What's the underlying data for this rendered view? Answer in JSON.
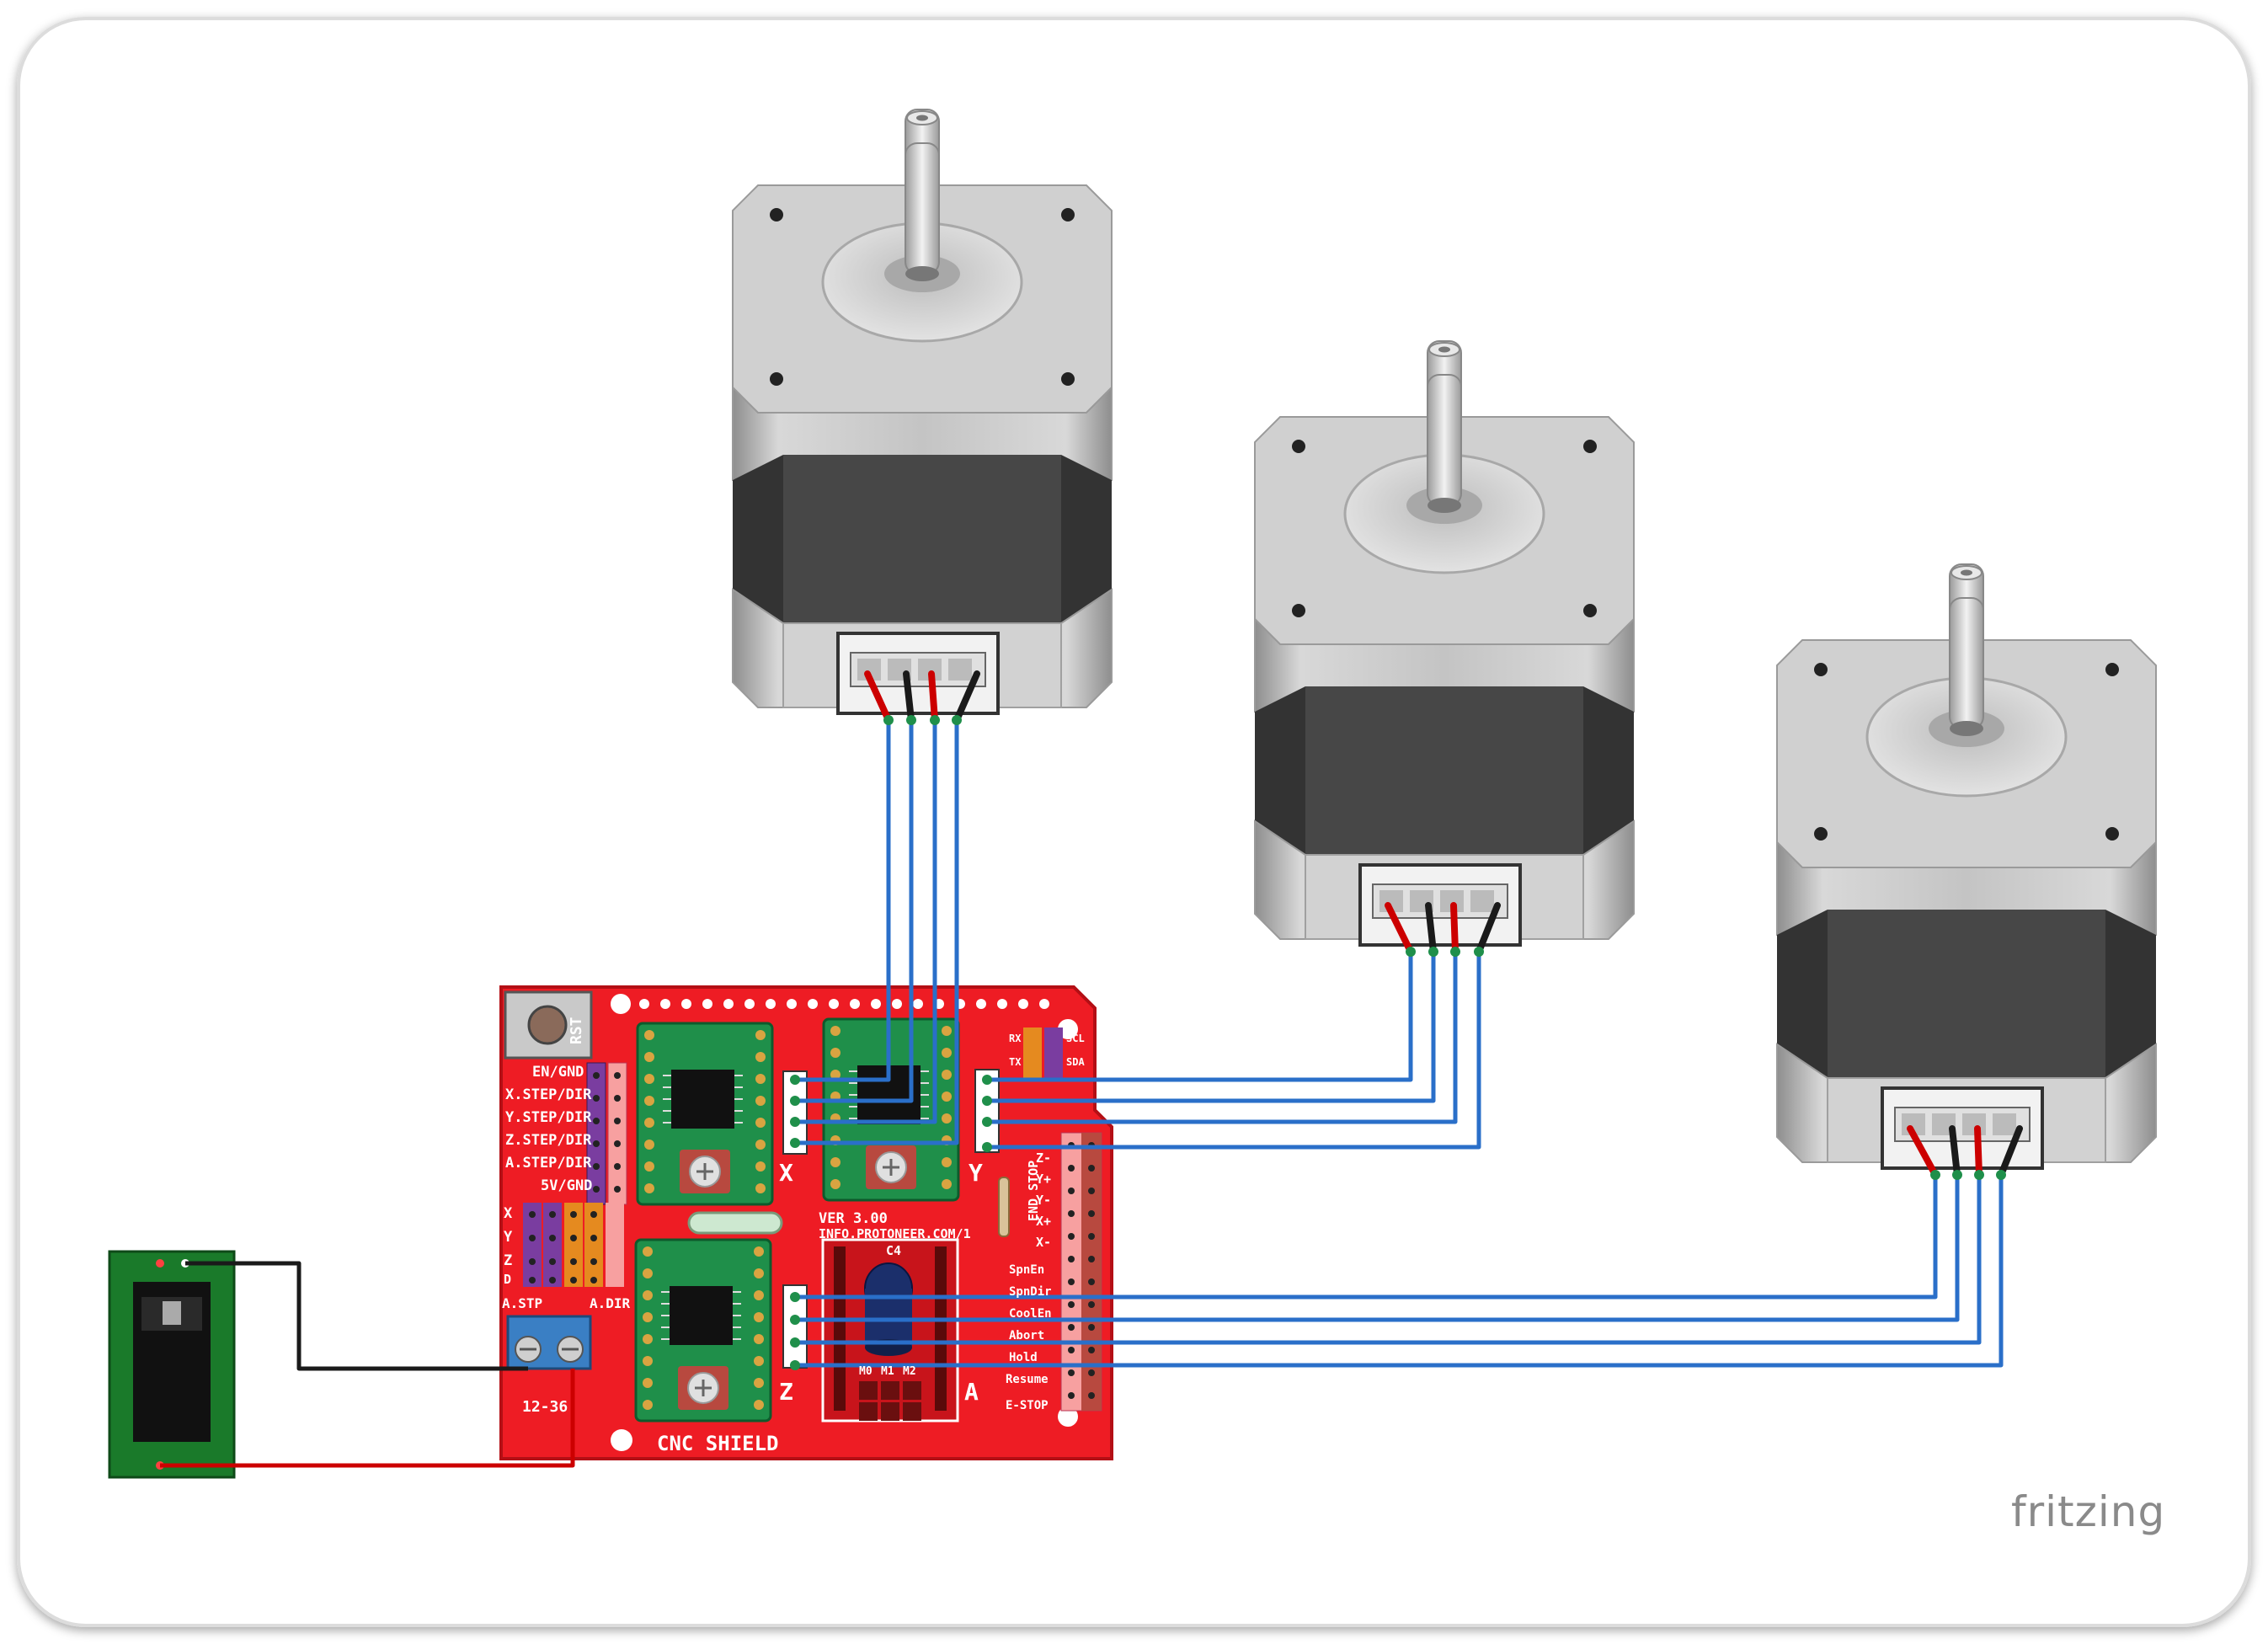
{
  "brand": "fritzing",
  "shield": {
    "rst": "RST",
    "pin_labels": [
      "EN/GND",
      "X.STEP/DIR",
      "Y.STEP/DIR",
      "Z.STEP/DIR",
      "A.STEP/DIR",
      "5V/GND"
    ],
    "axes_small": [
      "X",
      "Y",
      "Z",
      "D"
    ],
    "a_stp": "A.STP",
    "a_dir": "A.DIR",
    "voltage": "12-36",
    "axis_x": "X",
    "axis_y": "Y",
    "axis_z": "Z",
    "axis_a": "A",
    "version": "VER 3.00",
    "url": "INFO.PROTONEER.COM/1",
    "cap": "C4",
    "name": "CNC SHIELD",
    "i2c": [
      "RX",
      "TX",
      "SCL",
      "SDA"
    ],
    "endstop": "END STOP",
    "endstop_pins": [
      "Z-",
      "Y+",
      "Y-",
      "X+",
      "X-"
    ],
    "controls": [
      "SpnEn",
      "SpnDir",
      "CoolEn",
      "Abort",
      "Hold",
      "Resume",
      "E-STOP"
    ],
    "mpins": [
      "M0",
      "M1",
      "M2"
    ]
  },
  "colors": {
    "board": "#ee1c24",
    "wire_blue": "#2a6fc9",
    "wire_red": "#cc0000",
    "wire_black": "#1a1a1a",
    "driver": "#1f8f4a",
    "motor_light": "#c8c8c8",
    "motor_dark": "#3a3a3a",
    "jack_pcb": "#1a7a2a",
    "terminal": "#3a7fc4"
  },
  "icons": [
    "stepper-motor-icon",
    "power-jack-icon",
    "stepper-driver-icon",
    "reset-button-icon",
    "screw-terminal-icon"
  ]
}
